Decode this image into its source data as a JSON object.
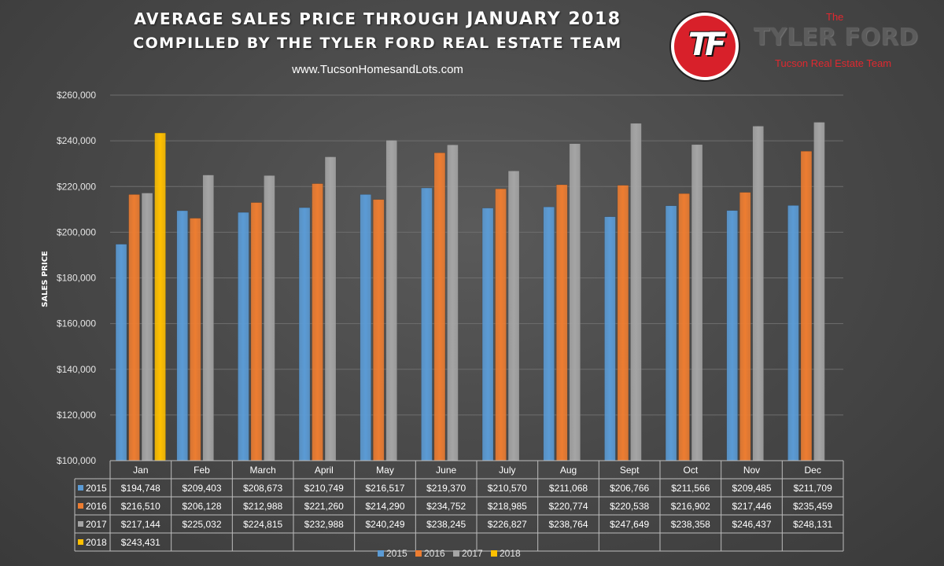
{
  "header": {
    "title_line1_prefix": "AVERAGE SALES PRICE THROUGH ",
    "title_line1_emphasis": "JANUARY 2018",
    "title_line2": "COMPILLED BY THE TYLER FORD REAL ESTATE TEAM",
    "website": "www.TucsonHomesandLots.com"
  },
  "brand": {
    "monogram": "TF",
    "the": "The",
    "name": "TYLER FORD",
    "tagline": "Tucson Real Estate Team",
    "accent_color": "#d8202a"
  },
  "chart_data": {
    "type": "bar",
    "title": "",
    "xlabel": "",
    "ylabel": "SALES PRICE",
    "ylim": [
      100000,
      260000
    ],
    "yticks": [
      100000,
      120000,
      140000,
      160000,
      180000,
      200000,
      220000,
      240000,
      260000
    ],
    "ytick_labels": [
      "$100,000",
      "$120,000",
      "$140,000",
      "$160,000",
      "$180,000",
      "$200,000",
      "$220,000",
      "$240,000",
      "$260,000"
    ],
    "grid": true,
    "legend_position": "bottom",
    "categories": [
      "Jan",
      "Feb",
      "March",
      "April",
      "May",
      "June",
      "July",
      "Aug",
      "Sept",
      "Oct",
      "Nov",
      "Dec"
    ],
    "series": [
      {
        "name": "2015",
        "color": "#5b9bd5",
        "values": [
          194748,
          209403,
          208673,
          210749,
          216517,
          219370,
          210570,
          211068,
          206766,
          211566,
          209485,
          211709
        ],
        "labels": [
          "$194,748",
          "$209,403",
          "$208,673",
          "$210,749",
          "$216,517",
          "$219,370",
          "$210,570",
          "$211,068",
          "$206,766",
          "$211,566",
          "$209,485",
          "$211,709"
        ]
      },
      {
        "name": "2016",
        "color": "#ed7d31",
        "values": [
          216510,
          206128,
          212988,
          221260,
          214290,
          234752,
          218985,
          220774,
          220538,
          216902,
          217446,
          235459
        ],
        "labels": [
          "$216,510",
          "$206,128",
          "$212,988",
          "$221,260",
          "$214,290",
          "$234,752",
          "$218,985",
          "$220,774",
          "$220,538",
          "$216,902",
          "$217,446",
          "$235,459"
        ]
      },
      {
        "name": "2017",
        "color": "#a5a5a5",
        "values": [
          217144,
          225032,
          224815,
          232988,
          240249,
          238245,
          226827,
          238764,
          247649,
          238358,
          246437,
          248131
        ],
        "labels": [
          "$217,144",
          "$225,032",
          "$224,815",
          "$232,988",
          "$240,249",
          "$238,245",
          "$226,827",
          "$238,764",
          "$247,649",
          "$238,358",
          "$246,437",
          "$248,131"
        ]
      },
      {
        "name": "2018",
        "color": "#ffc000",
        "values": [
          243431,
          null,
          null,
          null,
          null,
          null,
          null,
          null,
          null,
          null,
          null,
          null
        ],
        "labels": [
          "$243,431",
          "",
          "",
          "",
          "",
          "",
          "",
          "",
          "",
          "",
          "",
          ""
        ]
      }
    ]
  }
}
